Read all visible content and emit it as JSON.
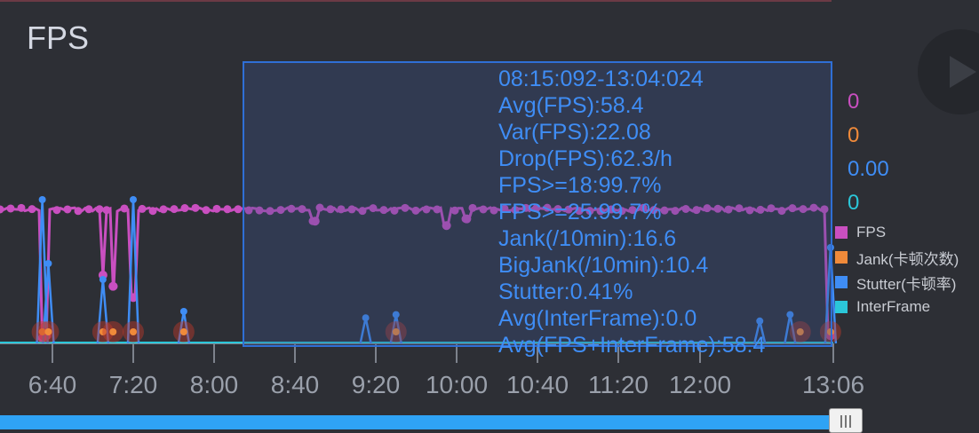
{
  "panel": {
    "title": "FPS"
  },
  "tooltip": {
    "lines": [
      "08:15:092-13:04:024",
      "Avg(FPS):58.4",
      "Var(FPS):22.08",
      "Drop(FPS):62.3/h",
      "FPS>=18:99.7%",
      "FPS>=25:99.7%",
      "Jank(/10min):16.6",
      "BigJank(/10min):10.4",
      "Stutter:0.41%",
      "Avg(InterFrame):0.0",
      "Avg(FPS+InterFrame):58.4"
    ]
  },
  "current_values": {
    "fps": "0",
    "jank": "0",
    "stutter": "0.00",
    "interframe": "0"
  },
  "legend": [
    {
      "label": "FPS",
      "color": "#c94fc0"
    },
    {
      "label": "Jank(卡顿次数)",
      "color": "#f08a3a"
    },
    {
      "label": "Stutter(卡顿率)",
      "color": "#3f8df5"
    },
    {
      "label": "InterFrame",
      "color": "#2bc7d9"
    }
  ],
  "chart_data": {
    "type": "line",
    "x_tick_labels": [
      "6:40",
      "7:20",
      "8:00",
      "8:40",
      "9:20",
      "10:00",
      "10:40",
      "11:20",
      "12:00",
      "13:06"
    ],
    "series": [
      {
        "name": "FPS",
        "color": "#c94fc0"
      },
      {
        "name": "Stutter(卡顿率)",
        "color": "#3f8df5"
      },
      {
        "name": "InterFrame",
        "color": "#2bc7d9"
      }
    ],
    "fps_baseline": 60,
    "fps_dips": [
      {
        "t": "6:35",
        "v": 2
      },
      {
        "t": "6:37",
        "v": 3
      },
      {
        "t": "7:05",
        "v": 30
      },
      {
        "t": "7:10",
        "v": 25
      },
      {
        "t": "7:20",
        "v": 20
      },
      {
        "t": "8:50",
        "v": 54
      },
      {
        "t": "9:55",
        "v": 52
      },
      {
        "t": "10:05",
        "v": 55
      },
      {
        "t": "13:05",
        "v": 3
      }
    ],
    "stutter_spikes": [
      {
        "t": "6:35",
        "v": 45
      },
      {
        "t": "6:38",
        "v": 25
      },
      {
        "t": "7:05",
        "v": 20
      },
      {
        "t": "7:20",
        "v": 45
      },
      {
        "t": "7:45",
        "v": 10
      },
      {
        "t": "9:15",
        "v": 8
      },
      {
        "t": "9:30",
        "v": 9
      },
      {
        "t": "12:30",
        "v": 7
      },
      {
        "t": "12:45",
        "v": 9
      },
      {
        "t": "13:05",
        "v": 30
      }
    ],
    "jank_markers": [
      "6:35",
      "6:38",
      "7:05",
      "7:10",
      "7:20",
      "7:45",
      "9:30",
      "12:50",
      "13:05"
    ],
    "grid": false,
    "legend_position": "right"
  },
  "scrollbar": {
    "fill": 1.0
  }
}
